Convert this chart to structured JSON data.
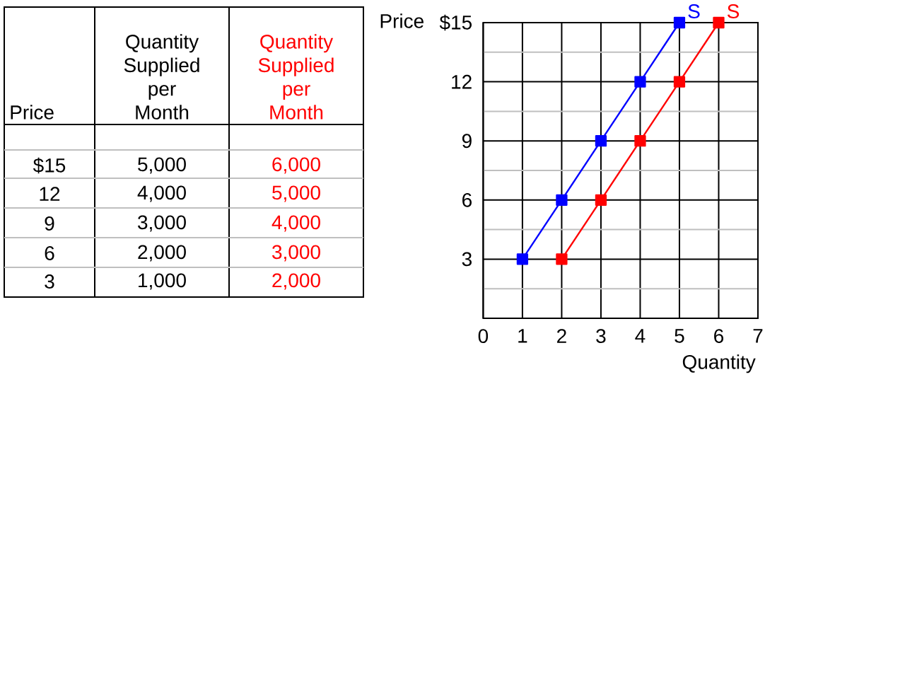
{
  "chart_data": {
    "type": "line",
    "xlabel": "Quantity",
    "ylabel": "Price",
    "xlim": [
      0,
      7
    ],
    "ylim": [
      0,
      15
    ],
    "xticks": [
      0,
      1,
      2,
      3,
      4,
      5,
      6,
      7
    ],
    "yticks": [
      {
        "value": 1.5,
        "label": null
      },
      3,
      {
        "value": 4.5,
        "label": null
      },
      6,
      {
        "value": 7.5,
        "label": null
      },
      9,
      {
        "value": 10.5,
        "label": null
      },
      12,
      {
        "value": 13.5,
        "label": null
      },
      {
        "value": 15,
        "label": "$15"
      }
    ],
    "grid": true,
    "marker": "square",
    "line_style": "solid",
    "series": [
      {
        "name": "S",
        "color": "#0000ff",
        "x": [
          1,
          2,
          3,
          4,
          5
        ],
        "values": [
          3,
          6,
          9,
          12,
          15
        ]
      },
      {
        "name": "S",
        "color": "#ff0000",
        "x": [
          2,
          3,
          4,
          5,
          6
        ],
        "values": [
          3,
          6,
          9,
          12,
          15
        ]
      }
    ],
    "annotations": [
      "Price",
      "Quantity Supplied per Month",
      "Quantity Supplied per Month",
      "$15",
      "5,000",
      "6,000",
      "12",
      "4,000",
      "5,000",
      "9",
      "3,000",
      "4,000",
      "6",
      "2,000",
      "3,000",
      "3",
      "1,000",
      "2,000"
    ]
  }
}
